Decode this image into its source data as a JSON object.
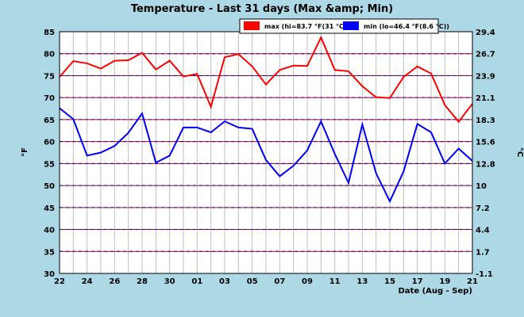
{
  "chart_data": {
    "type": "line",
    "title": "Temperature - Last 31 days (Max &amp; Min)",
    "xlabel": "Date (Aug - Sep)",
    "ylabel_left": "°F",
    "ylabel_right": "°C",
    "ylim": [
      30,
      85
    ],
    "yticks": [
      30,
      35,
      40,
      45,
      50,
      55,
      60,
      65,
      70,
      75,
      80,
      85
    ],
    "right_ticks": [
      "-1.1",
      "1.7",
      "4.4",
      "7.2",
      "10",
      "12.8",
      "15.6",
      "18.3",
      "21.1",
      "23.9",
      "26.7",
      "29.4"
    ],
    "x": [
      "22",
      "23",
      "24",
      "25",
      "26",
      "27",
      "28",
      "29",
      "30",
      "31",
      "01",
      "02",
      "03",
      "04",
      "05",
      "06",
      "07",
      "08",
      "09",
      "10",
      "11",
      "12",
      "13",
      "14",
      "15",
      "16",
      "17",
      "18",
      "19",
      "20",
      "21"
    ],
    "xtick_labels": [
      "22",
      "24",
      "26",
      "28",
      "30",
      "01",
      "03",
      "05",
      "07",
      "09",
      "11",
      "13",
      "15",
      "17",
      "19",
      "21"
    ],
    "grid": true,
    "legend_position": "top-right",
    "series": [
      {
        "name": "max (hi=83.7 °F(31 °C))",
        "color": "#ff0000",
        "values": [
          74.7,
          78.3,
          77.8,
          76.6,
          78.4,
          78.5,
          80.2,
          76.4,
          78.4,
          74.8,
          75.4,
          67.9,
          79.2,
          79.9,
          77.1,
          73.0,
          76.3,
          77.3,
          77.2,
          83.7,
          76.3,
          76.0,
          72.6,
          70.1,
          69.9,
          74.7,
          77.1,
          75.5,
          68.3,
          64.5,
          68.6
        ]
      },
      {
        "name": "min (lo=46.4 °F(8.6 °C))",
        "color": "#0000ff",
        "values": [
          67.6,
          65.1,
          56.8,
          57.5,
          59.0,
          62.0,
          66.4,
          55.2,
          56.8,
          63.2,
          63.2,
          62.1,
          64.6,
          63.2,
          62.9,
          55.8,
          52.1,
          54.5,
          58.0,
          64.6,
          57.2,
          50.6,
          63.9,
          52.8,
          46.4,
          53.2,
          64.0,
          62.1,
          55.0,
          58.4,
          55.6
        ]
      }
    ]
  }
}
